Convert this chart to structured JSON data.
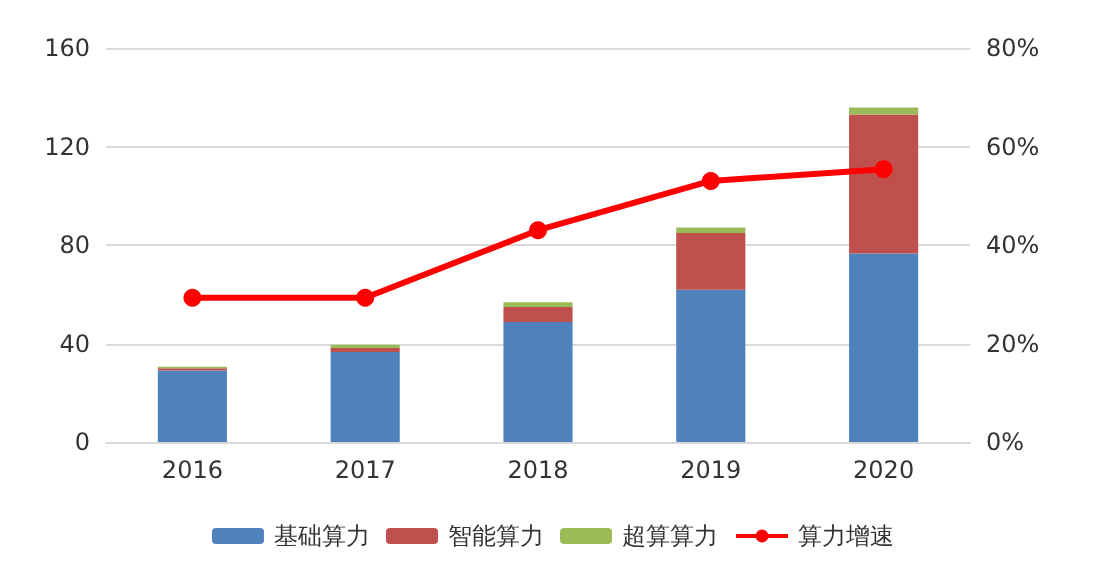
{
  "chart_data": {
    "type": "bar",
    "stacked": true,
    "categories": [
      "2016",
      "2017",
      "2018",
      "2019",
      "2020"
    ],
    "series": [
      {
        "name": "基础算力",
        "color": "#4f81bd",
        "values": [
          29,
          36.5,
          48.7,
          61.8,
          76.5
        ]
      },
      {
        "name": "智能算力",
        "color": "#c0504d",
        "values": [
          1,
          1.7,
          6.1,
          23.1,
          56.5
        ]
      },
      {
        "name": "超算算力",
        "color": "#9bbb59",
        "values": [
          0.6,
          1.3,
          2,
          2.2,
          2.8
        ]
      },
      {
        "name": "算力增速",
        "type": "line",
        "axis": "y2",
        "color": "#ff0000",
        "marker": "circle",
        "values": [
          29.3,
          29.3,
          43,
          53,
          55.4
        ]
      }
    ],
    "ylim": [
      0,
      160
    ],
    "yticks": [
      0,
      40,
      80,
      120,
      160
    ],
    "y2lim": [
      0,
      80
    ],
    "y2ticks": [
      {
        "value": 0,
        "label": "0%"
      },
      {
        "value": 20,
        "label": "20%"
      },
      {
        "value": 40,
        "label": "40%"
      },
      {
        "value": 60,
        "label": "60%"
      },
      {
        "value": 80,
        "label": "80%"
      }
    ],
    "grid": "y",
    "legend": "bottom"
  }
}
